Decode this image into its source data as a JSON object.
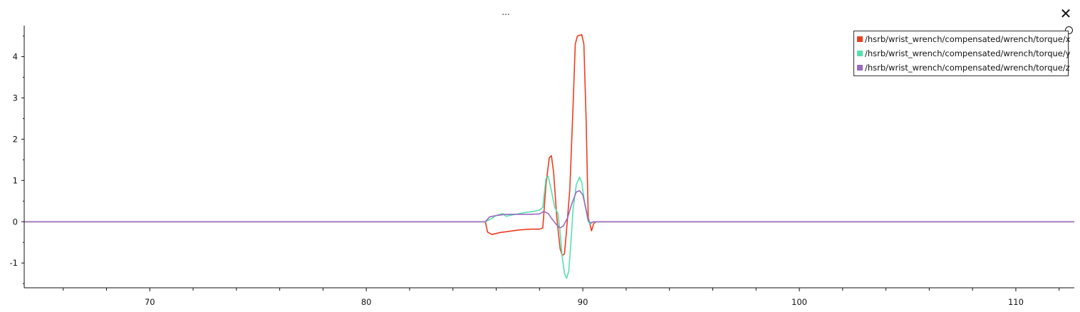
{
  "window": {
    "title": "...",
    "close_icon": "close-icon"
  },
  "chart_data": {
    "type": "line",
    "title": "",
    "xlabel": "",
    "ylabel": "",
    "xlim": [
      64.2,
      112.7
    ],
    "ylim": [
      -1.6,
      4.75
    ],
    "x_ticks": [
      70,
      80,
      90,
      100,
      110
    ],
    "y_ticks": [
      -1,
      0,
      1,
      2,
      3,
      4
    ],
    "grid": false,
    "legend_position": "top-right",
    "series": [
      {
        "name": "/hsrb/wrist_wrench/compensated/wrench/torque/x",
        "color": "#ee3d1f",
        "points": [
          [
            64.2,
            0
          ],
          [
            85.5,
            0
          ],
          [
            85.6,
            -0.25
          ],
          [
            85.8,
            -0.31
          ],
          [
            86.2,
            -0.26
          ],
          [
            86.5,
            -0.24
          ],
          [
            87.0,
            -0.2
          ],
          [
            87.6,
            -0.18
          ],
          [
            88.0,
            -0.18
          ],
          [
            88.15,
            -0.15
          ],
          [
            88.3,
            0.9
          ],
          [
            88.45,
            1.55
          ],
          [
            88.55,
            1.6
          ],
          [
            88.65,
            1.2
          ],
          [
            88.8,
            0.1
          ],
          [
            88.95,
            -0.65
          ],
          [
            89.05,
            -0.82
          ],
          [
            89.15,
            -0.78
          ],
          [
            89.25,
            -0.2
          ],
          [
            89.4,
            0.8
          ],
          [
            89.55,
            2.8
          ],
          [
            89.65,
            4.3
          ],
          [
            89.75,
            4.5
          ],
          [
            89.95,
            4.53
          ],
          [
            90.05,
            4.3
          ],
          [
            90.15,
            2.5
          ],
          [
            90.25,
            0.1
          ],
          [
            90.35,
            -0.1
          ],
          [
            90.4,
            -0.22
          ],
          [
            90.5,
            -0.05
          ],
          [
            90.6,
            0
          ],
          [
            112.7,
            0
          ]
        ]
      },
      {
        "name": "/hsrb/wrist_wrench/compensated/wrench/torque/y",
        "color": "#56e0ae",
        "points": [
          [
            64.2,
            0
          ],
          [
            85.5,
            0
          ],
          [
            85.7,
            0.05
          ],
          [
            86.0,
            0.15
          ],
          [
            86.3,
            0.2
          ],
          [
            86.45,
            0.13
          ],
          [
            86.6,
            0.15
          ],
          [
            86.9,
            0.18
          ],
          [
            87.3,
            0.22
          ],
          [
            87.7,
            0.25
          ],
          [
            88.0,
            0.28
          ],
          [
            88.15,
            0.35
          ],
          [
            88.3,
            1.05
          ],
          [
            88.4,
            1.1
          ],
          [
            88.55,
            0.75
          ],
          [
            88.7,
            0.35
          ],
          [
            88.85,
            0.2
          ],
          [
            88.95,
            -0.25
          ],
          [
            89.05,
            -0.85
          ],
          [
            89.15,
            -1.25
          ],
          [
            89.25,
            -1.37
          ],
          [
            89.35,
            -1.2
          ],
          [
            89.45,
            -0.5
          ],
          [
            89.55,
            0.3
          ],
          [
            89.7,
            0.9
          ],
          [
            89.85,
            1.08
          ],
          [
            89.95,
            0.95
          ],
          [
            90.1,
            0.4
          ],
          [
            90.25,
            0
          ],
          [
            90.35,
            -0.05
          ],
          [
            90.5,
            0
          ],
          [
            112.7,
            0
          ]
        ]
      },
      {
        "name": "/hsrb/wrist_wrench/compensated/wrench/torque/z",
        "color": "#9b69c0",
        "points": [
          [
            64.2,
            0
          ],
          [
            85.5,
            0
          ],
          [
            85.7,
            0.12
          ],
          [
            86.0,
            0.15
          ],
          [
            86.3,
            0.17
          ],
          [
            86.5,
            0.18
          ],
          [
            86.8,
            0.18
          ],
          [
            87.2,
            0.18
          ],
          [
            87.6,
            0.18
          ],
          [
            88.0,
            0.19
          ],
          [
            88.2,
            0.25
          ],
          [
            88.4,
            0.2
          ],
          [
            88.6,
            0.05
          ],
          [
            88.8,
            -0.08
          ],
          [
            88.95,
            -0.15
          ],
          [
            89.1,
            -0.1
          ],
          [
            89.3,
            0.1
          ],
          [
            89.5,
            0.45
          ],
          [
            89.7,
            0.72
          ],
          [
            89.85,
            0.75
          ],
          [
            90.0,
            0.65
          ],
          [
            90.15,
            0.3
          ],
          [
            90.25,
            0.05
          ],
          [
            90.35,
            -0.03
          ],
          [
            90.5,
            0
          ],
          [
            112.7,
            0
          ]
        ]
      }
    ]
  }
}
